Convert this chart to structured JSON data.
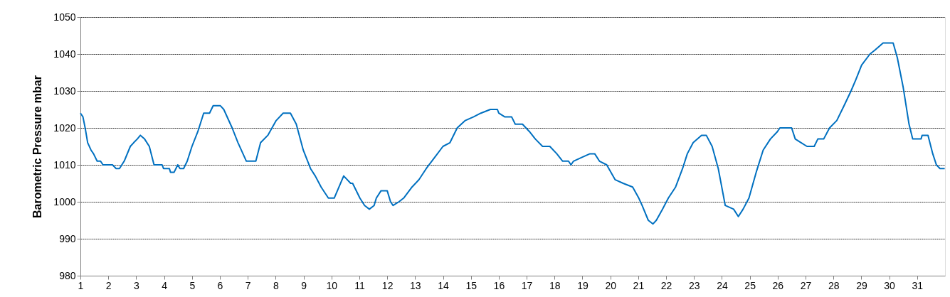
{
  "chart_data": {
    "type": "line",
    "ylabel": "Barometric Pressure mbar",
    "xlim": [
      1,
      32
    ],
    "xticks": [
      1,
      2,
      3,
      4,
      5,
      6,
      7,
      8,
      9,
      10,
      11,
      12,
      13,
      14,
      15,
      16,
      17,
      18,
      19,
      20,
      21,
      22,
      23,
      24,
      25,
      26,
      27,
      28,
      29,
      30,
      31
    ],
    "ylim": [
      980,
      1050
    ],
    "yticks": [
      980,
      990,
      1000,
      1010,
      1020,
      1030,
      1040,
      1050
    ],
    "grid": "y",
    "line_style": "solid",
    "series": [
      {
        "color": "#0070c0",
        "x": [
          1,
          1.09,
          1.17,
          1.26,
          1.38,
          1.47,
          1.6,
          1.72,
          1.81,
          2.15,
          2.28,
          2.4,
          2.57,
          2.79,
          2.91,
          3.04,
          3.15,
          3.3,
          3.47,
          3.64,
          3.93,
          3.98,
          4.19,
          4.23,
          4.36,
          4.49,
          4.57,
          4.7,
          4.83,
          5.0,
          5.21,
          5.42,
          5.63,
          5.76,
          6.02,
          6.14,
          6.44,
          6.65,
          6.95,
          7.29,
          7.46,
          7.72,
          8.02,
          8.27,
          8.53,
          8.74,
          8.99,
          9.25,
          9.42,
          9.63,
          9.89,
          10.1,
          10.44,
          10.69,
          10.76,
          11.02,
          11.19,
          11.36,
          11.53,
          11.61,
          11.78,
          12.0,
          12.12,
          12.21,
          12.42,
          12.59,
          12.89,
          13.14,
          13.4,
          13.7,
          14.0,
          14.25,
          14.51,
          14.8,
          15.1,
          15.36,
          15.7,
          15.95,
          16.0,
          16.21,
          16.46,
          16.59,
          16.85,
          17.1,
          17.31,
          17.57,
          17.83,
          18.08,
          18.29,
          18.5,
          18.59,
          18.68,
          18.97,
          19.27,
          19.44,
          19.61,
          19.87,
          20.17,
          20.46,
          20.8,
          21.02,
          21.14,
          21.36,
          21.53,
          21.65,
          21.87,
          22.08,
          22.34,
          22.59,
          22.76,
          22.97,
          23.27,
          23.44,
          23.65,
          23.87,
          24.12,
          24.42,
          24.59,
          24.76,
          24.97,
          25.23,
          25.48,
          25.74,
          25.99,
          26.08,
          26.5,
          26.63,
          26.84,
          27.05,
          27.31,
          27.44,
          27.65,
          27.86,
          28.12,
          28.38,
          28.63,
          28.8,
          29.01,
          29.31,
          29.48,
          29.78,
          30.14,
          30.29,
          30.5,
          30.71,
          30.84,
          31.14,
          31.18,
          31.39,
          31.56,
          31.69,
          31.82,
          31.99
        ],
        "values": [
          1024,
          1023,
          1020,
          1016,
          1014,
          1013,
          1011,
          1011,
          1010,
          1010,
          1009,
          1009,
          1011,
          1015,
          1016,
          1017,
          1018,
          1017,
          1015,
          1010,
          1010,
          1009,
          1009,
          1008,
          1008,
          1010,
          1009,
          1009,
          1011,
          1015,
          1019,
          1024,
          1024,
          1026,
          1026,
          1025,
          1020,
          1016,
          1011,
          1011,
          1016,
          1018,
          1022,
          1024,
          1024,
          1021,
          1014,
          1009,
          1007,
          1004,
          1001,
          1001,
          1007,
          1005,
          1005,
          1001,
          999,
          998,
          999,
          1001,
          1003,
          1003,
          1000,
          999,
          1000,
          1001,
          1004,
          1006,
          1009,
          1012,
          1015,
          1016,
          1020,
          1022,
          1023,
          1024,
          1025,
          1025,
          1024,
          1023,
          1023,
          1021,
          1021,
          1019,
          1017,
          1015,
          1015,
          1013,
          1011,
          1011,
          1010,
          1011,
          1012,
          1013,
          1013,
          1011,
          1010,
          1006,
          1005,
          1004,
          1001,
          999,
          995,
          994,
          995,
          998,
          1001,
          1004,
          1009,
          1013,
          1016,
          1018,
          1018,
          1015,
          1009,
          999,
          998,
          996,
          998,
          1001,
          1008,
          1014,
          1017,
          1019,
          1020,
          1020,
          1017,
          1016,
          1015,
          1015,
          1017,
          1017,
          1020,
          1022,
          1026,
          1030,
          1033,
          1037,
          1040,
          1041,
          1043,
          1043,
          1039,
          1031,
          1021,
          1017,
          1017,
          1018,
          1018,
          1013,
          1010,
          1009,
          1009
        ]
      }
    ]
  }
}
